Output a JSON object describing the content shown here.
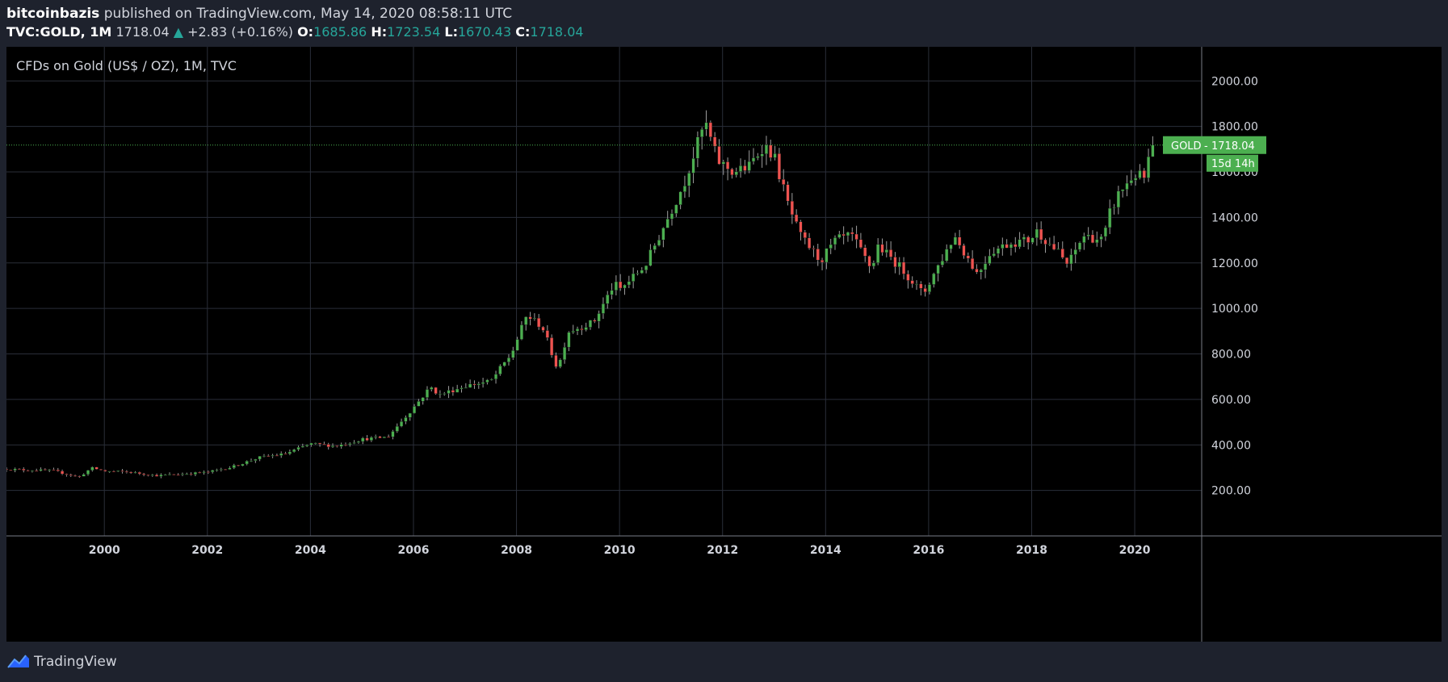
{
  "header": {
    "author": "bitcoinbazis",
    "published": "published on TradingView.com, May 14, 2020 08:58:11 UTC",
    "symbol": "TVC:GOLD, 1M",
    "last": "1718.04",
    "change": "+2.83 (+0.16%)",
    "o_label": "O:",
    "o_value": "1685.86",
    "h_label": "H:",
    "h_value": "1723.54",
    "l_label": "L:",
    "l_value": "1670.43",
    "c_label": "C:",
    "c_value": "1718.04"
  },
  "footer": {
    "brand": "TradingView"
  },
  "colors": {
    "background": "#000000",
    "up": "#4caf50",
    "down": "#ef5350",
    "grid": "#2a2e39",
    "text": "#d1d4dc",
    "price_line": "#4caf50"
  },
  "chart_data": {
    "type": "candlestick",
    "title": "CFDs on Gold (US$ / OZ), 1M, TVC",
    "x_ticks": [
      "2000",
      "2002",
      "2004",
      "2006",
      "2008",
      "2010",
      "2012",
      "2014",
      "2016",
      "2018",
      "2020"
    ],
    "y_ticks": [
      "200.00",
      "400.00",
      "600.00",
      "800.00",
      "1000.00",
      "1200.00",
      "1400.00",
      "1600.00",
      "1800.00",
      "2000.00"
    ],
    "xlim": [
      1998.1,
      2021.3
    ],
    "ylim": [
      0,
      2150
    ],
    "last_price_label": "GOLD",
    "last_price": "1718.04",
    "countdown": "15d 14h",
    "approx_monthly_close": [
      [
        1998.0,
        295
      ],
      [
        1998.5,
        290
      ],
      [
        1999.0,
        287
      ],
      [
        1999.5,
        258
      ],
      [
        1999.75,
        299
      ],
      [
        2000.0,
        285
      ],
      [
        2000.5,
        280
      ],
      [
        2001.0,
        265
      ],
      [
        2001.5,
        272
      ],
      [
        2002.0,
        280
      ],
      [
        2002.5,
        305
      ],
      [
        2003.0,
        345
      ],
      [
        2003.5,
        360
      ],
      [
        2004.0,
        405
      ],
      [
        2004.5,
        395
      ],
      [
        2005.0,
        425
      ],
      [
        2005.5,
        435
      ],
      [
        2006.0,
        565
      ],
      [
        2006.33,
        655
      ],
      [
        2006.5,
        620
      ],
      [
        2007.0,
        660
      ],
      [
        2007.5,
        680
      ],
      [
        2007.9,
        800
      ],
      [
        2008.2,
        970
      ],
      [
        2008.5,
        920
      ],
      [
        2008.8,
        730
      ],
      [
        2009.0,
        900
      ],
      [
        2009.5,
        940
      ],
      [
        2009.9,
        1110
      ],
      [
        2010.0,
        1080
      ],
      [
        2010.5,
        1190
      ],
      [
        2010.95,
        1405
      ],
      [
        2011.25,
        1550
      ],
      [
        2011.66,
        1820
      ],
      [
        2011.9,
        1650
      ],
      [
        2012.2,
        1600
      ],
      [
        2012.5,
        1620
      ],
      [
        2012.8,
        1720
      ],
      [
        2013.0,
        1670
      ],
      [
        2013.25,
        1470
      ],
      [
        2013.5,
        1320
      ],
      [
        2013.9,
        1210
      ],
      [
        2014.2,
        1300
      ],
      [
        2014.5,
        1320
      ],
      [
        2014.9,
        1170
      ],
      [
        2015.0,
        1280
      ],
      [
        2015.5,
        1170
      ],
      [
        2015.9,
        1060
      ],
      [
        2016.0,
        1110
      ],
      [
        2016.5,
        1320
      ],
      [
        2016.95,
        1150
      ],
      [
        2017.2,
        1250
      ],
      [
        2017.6,
        1290
      ],
      [
        2017.95,
        1300
      ],
      [
        2018.1,
        1340
      ],
      [
        2018.5,
        1250
      ],
      [
        2018.7,
        1190
      ],
      [
        2019.0,
        1320
      ],
      [
        2019.4,
        1300
      ],
      [
        2019.5,
        1410
      ],
      [
        2019.7,
        1510
      ],
      [
        2020.0,
        1590
      ],
      [
        2020.2,
        1570
      ],
      [
        2020.3,
        1690
      ],
      [
        2020.37,
        1718
      ]
    ]
  }
}
